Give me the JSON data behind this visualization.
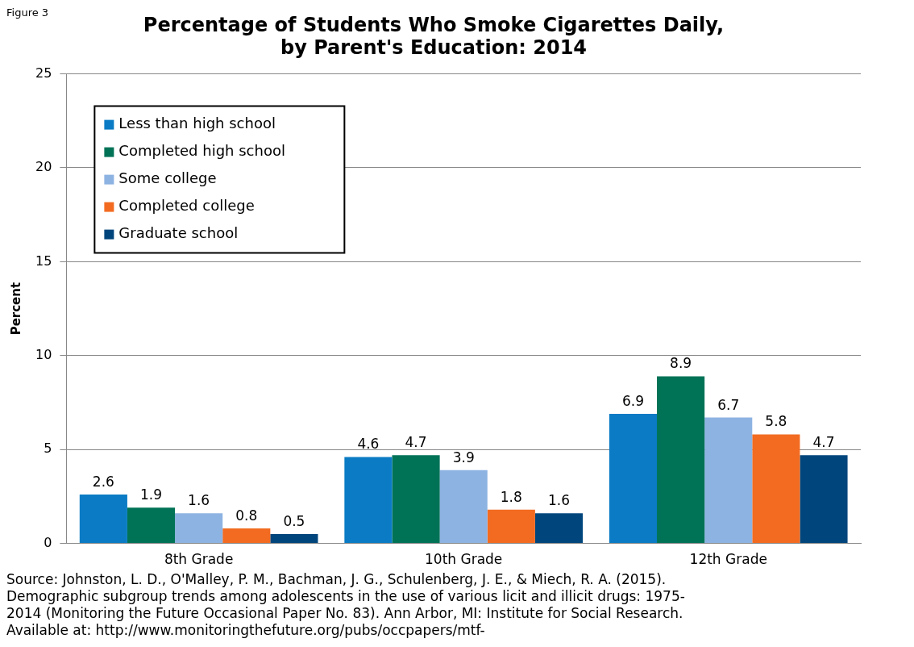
{
  "chart_data": {
    "type": "bar",
    "title": "Percentage of Students Who Smoke Cigarettes Daily,\nby Parent's Education: 2014",
    "ylabel": "Percent",
    "categories": [
      "8th Grade",
      "10th Grade",
      "12th Grade"
    ],
    "series": [
      {
        "name": "Less than high school",
        "color": "#0a7bc4",
        "values": [
          2.6,
          4.6,
          6.9
        ]
      },
      {
        "name": "Completed high school",
        "color": "#007256",
        "values": [
          1.9,
          4.7,
          8.9
        ]
      },
      {
        "name": "Some college",
        "color": "#8db3e2",
        "values": [
          1.6,
          3.9,
          6.7
        ]
      },
      {
        "name": "Completed college",
        "color": "#f26b21",
        "values": [
          0.8,
          1.8,
          5.8
        ]
      },
      {
        "name": "Graduate school",
        "color": "#00457c",
        "values": [
          0.5,
          1.6,
          4.7
        ]
      }
    ],
    "ylim": [
      0,
      25
    ],
    "yticks": [
      0,
      5,
      10,
      15,
      20,
      25
    ],
    "grid": "y",
    "legend": "top left",
    "data_labels": true,
    "annotations": [
      "Figure 3",
      "Source: Johnston, L. D., O'Malley, P. M., Bachman, J. G., Schulenberg, J. E., & Miech, R. A. (2015). Demographic subgroup trends among adolescents in the use of various licit and illicit drugs: 1975-2014 (Monitoring the Future Occasional Paper No. 83). Ann Arbor, MI: Institute for Social Research. Available at: http://www.monitoringthefuture.org/pubs/occpapers/mtf-"
    ]
  }
}
